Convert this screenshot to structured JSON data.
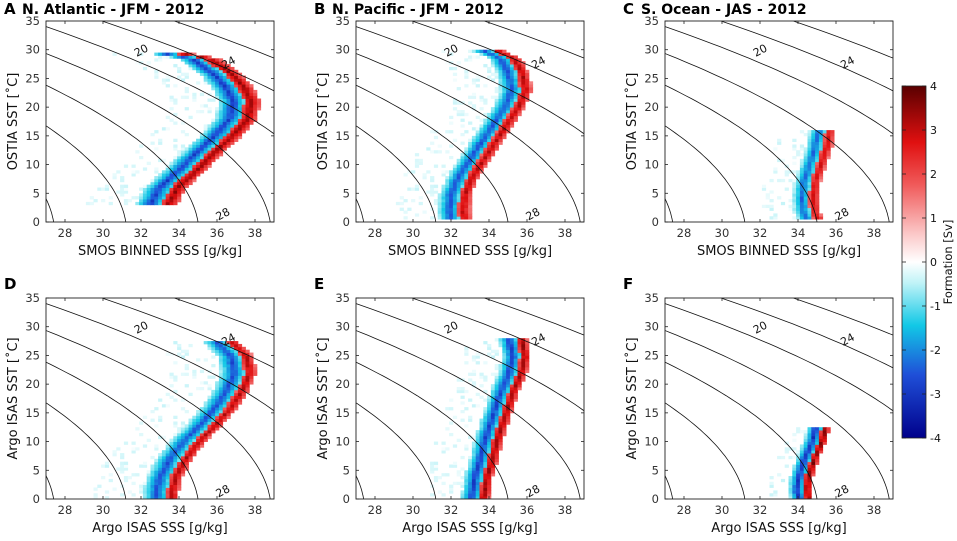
{
  "chart_data": {
    "type": "heatmap",
    "shared": {
      "xlim": [
        27,
        39
      ],
      "ylim": [
        0,
        35
      ],
      "x_ticks": [
        28,
        30,
        32,
        34,
        36,
        38
      ],
      "y_ticks": [
        0,
        5,
        10,
        15,
        20,
        25,
        30,
        35
      ],
      "density_contour_labels": [
        "20",
        "24",
        "28"
      ],
      "colorbar": {
        "label": "Formation [Sv]",
        "min": -4,
        "max": 4,
        "ticks": [
          -4,
          -3,
          -2,
          -1,
          0,
          1,
          2,
          3,
          4
        ],
        "tick_labels": [
          "-4",
          "-3",
          "-2",
          "-1",
          "0",
          "1",
          "2",
          "3",
          "4"
        ],
        "colors": {
          "negative": "#00008b",
          "zero": "#ffffff",
          "positive": "#5a0000"
        }
      }
    },
    "panels": [
      {
        "letter": "A",
        "title": "N. Atlantic - JFM - 2012",
        "xlabel": "SMOS BINNED SSS [g/kg]",
        "ylabel": "OSTIA SST [˚C]",
        "ridge": [
          [
            31.3,
            29.5
          ],
          [
            33.5,
            29.5
          ],
          [
            35.2,
            28.5
          ],
          [
            36.3,
            26
          ],
          [
            37,
            23.5
          ],
          [
            37.4,
            21
          ],
          [
            37.2,
            18
          ],
          [
            36.4,
            15
          ],
          [
            35.4,
            12
          ],
          [
            34.5,
            9
          ],
          [
            33.5,
            6
          ],
          [
            33,
            3
          ]
        ],
        "pos_half": 0.8,
        "neg_half": 1.4,
        "diffuse_half": 2.6,
        "peak": 3.6
      },
      {
        "letter": "B",
        "title": "N. Pacific - JFM - 2012",
        "xlabel": "SMOS BINNED SSS [g/kg]",
        "ylabel": "OSTIA SST [˚C]",
        "ridge": [
          [
            34,
            30
          ],
          [
            35,
            28.5
          ],
          [
            35.4,
            26
          ],
          [
            35.6,
            23
          ],
          [
            35.2,
            20
          ],
          [
            34.6,
            17
          ],
          [
            34,
            14
          ],
          [
            33.4,
            11
          ],
          [
            32.8,
            8
          ],
          [
            32.4,
            5
          ],
          [
            32.3,
            2
          ],
          [
            32.4,
            0.3
          ]
        ],
        "pos_half": 0.6,
        "neg_half": 1.1,
        "diffuse_half": 2.4,
        "peak": 3.4
      },
      {
        "letter": "C",
        "title": "S. Ocean - JAS - 2012",
        "xlabel": "SMOS BINNED SSS [g/kg]",
        "ylabel": "OSTIA SST [˚C]",
        "ridge": [
          [
            35.4,
            16
          ],
          [
            35.2,
            13
          ],
          [
            34.9,
            10
          ],
          [
            34.6,
            7
          ],
          [
            34.5,
            4
          ],
          [
            34.6,
            1.5
          ],
          [
            34.8,
            0.3
          ]
        ],
        "pos_half": 0.5,
        "neg_half": 0.9,
        "diffuse_half": 1.6,
        "peak": 3.2
      },
      {
        "letter": "D",
        "title": "",
        "xlabel": "Argo ISAS SSS [g/kg]",
        "ylabel": "Argo ISAS SST [˚C]",
        "ridge": [
          [
            36.4,
            27.5
          ],
          [
            37.2,
            25
          ],
          [
            37.4,
            22
          ],
          [
            37,
            19
          ],
          [
            36.4,
            16
          ],
          [
            35.6,
            13
          ],
          [
            34.7,
            10
          ],
          [
            34,
            7
          ],
          [
            33.5,
            4
          ],
          [
            33.3,
            1.5
          ],
          [
            33.3,
            0.2
          ]
        ],
        "pos_half": 0.6,
        "neg_half": 1.3,
        "diffuse_half": 2.6,
        "peak": 3.4
      },
      {
        "letter": "E",
        "title": "",
        "xlabel": "Argo ISAS SSS [g/kg]",
        "ylabel": "Argo ISAS SST [˚C]",
        "ridge": [
          [
            35.4,
            28
          ],
          [
            35.6,
            25
          ],
          [
            35.4,
            22
          ],
          [
            35,
            19
          ],
          [
            34.7,
            16
          ],
          [
            34.4,
            13
          ],
          [
            34.1,
            10
          ],
          [
            33.9,
            7
          ],
          [
            33.6,
            4
          ],
          [
            33.5,
            1.5
          ],
          [
            33.4,
            0.2
          ]
        ],
        "pos_half": 0.5,
        "neg_half": 1.0,
        "diffuse_half": 2.0,
        "peak": 3.6
      },
      {
        "letter": "F",
        "title": "",
        "xlabel": "Argo ISAS SSS [g/kg]",
        "ylabel": "Argo ISAS SST [˚C]",
        "ridge": [
          [
            35.2,
            12.5
          ],
          [
            35,
            10
          ],
          [
            34.6,
            7
          ],
          [
            34.3,
            4
          ],
          [
            34.2,
            1.5
          ],
          [
            34.3,
            0.2
          ]
        ],
        "pos_half": 0.4,
        "neg_half": 0.8,
        "diffuse_half": 1.1,
        "peak": 3.8
      }
    ]
  }
}
